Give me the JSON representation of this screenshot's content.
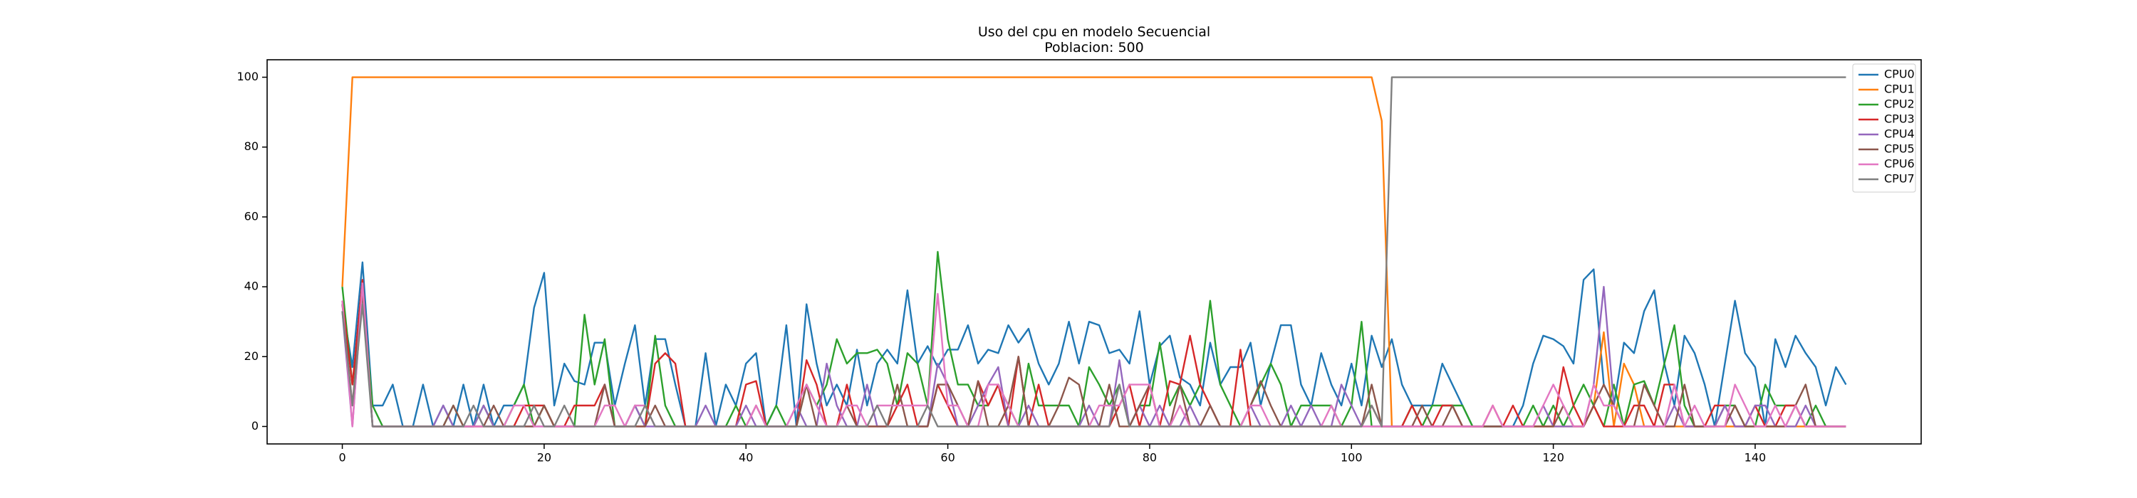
{
  "chart_data": {
    "type": "line",
    "title": "Uso del cpu en modelo Secuencial\nPoblacion: 500",
    "x": [
      0,
      1,
      2,
      3,
      4,
      5,
      6,
      7,
      8,
      9,
      10,
      11,
      12,
      13,
      14,
      15,
      16,
      17,
      18,
      19,
      20,
      21,
      22,
      23,
      24,
      25,
      26,
      27,
      28,
      29,
      30,
      31,
      32,
      33,
      34,
      35,
      36,
      37,
      38,
      39,
      40,
      41,
      42,
      43,
      44,
      45,
      46,
      47,
      48,
      49,
      50,
      51,
      52,
      53,
      54,
      55,
      56,
      57,
      58,
      59,
      60,
      61,
      62,
      63,
      64,
      65,
      66,
      67,
      68,
      69,
      70,
      71,
      72,
      73,
      74,
      75,
      76,
      77,
      78,
      79,
      80,
      81,
      82,
      83,
      84,
      85,
      86,
      87,
      88,
      89,
      90,
      91,
      92,
      93,
      94,
      95,
      96,
      97,
      98,
      99,
      100,
      101,
      102,
      103,
      104,
      105,
      106,
      107,
      108,
      109,
      110,
      111,
      112,
      113,
      114,
      115,
      116,
      117,
      118,
      119,
      120,
      121,
      122,
      123,
      124,
      125,
      126,
      127,
      128,
      129,
      130,
      131,
      132,
      133,
      134,
      135,
      136,
      137,
      138,
      139,
      140,
      141,
      142,
      143,
      144,
      145,
      146,
      147,
      148,
      149
    ],
    "series": [
      {
        "name": "CPU0",
        "color": "#1f77b4",
        "values": [
          35,
          17,
          47,
          6,
          6,
          12,
          0,
          0,
          12,
          0,
          6,
          0,
          12,
          0,
          12,
          0,
          6,
          6,
          12,
          34,
          44,
          6,
          18,
          13,
          12,
          24,
          24,
          6,
          18,
          29,
          6,
          25,
          25,
          12,
          0,
          0,
          21,
          0,
          12,
          6,
          18,
          21,
          0,
          6,
          29,
          0,
          35,
          18,
          6,
          12,
          6,
          22,
          6,
          18,
          22,
          18,
          39,
          18,
          23,
          17,
          22,
          22,
          29,
          18,
          22,
          21,
          29,
          24,
          28,
          18,
          12,
          18,
          30,
          18,
          30,
          29,
          21,
          22,
          18,
          33,
          12,
          23,
          26,
          14,
          12,
          6,
          24,
          12,
          17,
          17,
          24,
          6,
          18,
          29,
          29,
          12,
          6,
          21,
          12,
          6,
          18,
          6,
          26,
          17,
          25,
          12,
          6,
          6,
          6,
          18,
          12,
          6,
          0,
          0,
          0,
          0,
          0,
          6,
          18,
          26,
          25,
          23,
          18,
          42,
          45,
          12,
          6,
          24,
          21,
          33,
          39,
          18,
          6,
          26,
          21,
          12,
          0,
          18,
          36,
          21,
          17,
          0,
          25,
          17,
          26,
          21,
          17,
          6,
          17,
          12
        ]
      },
      {
        "name": "CPU1",
        "color": "#ff7f0e",
        "values": [
          40,
          100,
          100,
          100,
          100,
          100,
          100,
          100,
          100,
          100,
          100,
          100,
          100,
          100,
          100,
          100,
          100,
          100,
          100,
          100,
          100,
          100,
          100,
          100,
          100,
          100,
          100,
          100,
          100,
          100,
          100,
          100,
          100,
          100,
          100,
          100,
          100,
          100,
          100,
          100,
          100,
          100,
          100,
          100,
          100,
          100,
          100,
          100,
          100,
          100,
          100,
          100,
          100,
          100,
          100,
          100,
          100,
          100,
          100,
          100,
          100,
          100,
          100,
          100,
          100,
          100,
          100,
          100,
          100,
          100,
          100,
          100,
          100,
          100,
          100,
          100,
          100,
          100,
          100,
          100,
          100,
          100,
          100,
          100,
          100,
          100,
          100,
          100,
          100,
          100,
          100,
          100,
          100,
          100,
          100,
          100,
          100,
          100,
          100,
          100,
          100,
          100,
          100,
          87.5,
          0,
          0,
          0,
          0,
          0,
          0,
          0,
          0,
          0,
          0,
          0,
          0,
          0,
          0,
          0,
          0,
          0,
          0,
          0,
          0,
          6,
          27,
          0,
          18,
          12,
          0,
          0,
          0,
          0,
          0,
          0,
          0,
          0,
          0,
          0,
          0,
          0,
          0,
          0,
          0,
          0,
          0,
          0,
          0,
          0,
          0
        ]
      },
      {
        "name": "CPU2",
        "color": "#2ca02c",
        "values": [
          40,
          12,
          38,
          6,
          0,
          0,
          0,
          0,
          0,
          0,
          0,
          6,
          0,
          0,
          6,
          0,
          0,
          6,
          12,
          0,
          6,
          0,
          0,
          0,
          32,
          12,
          25,
          0,
          0,
          6,
          0,
          26,
          6,
          0,
          0,
          0,
          0,
          0,
          0,
          6,
          0,
          0,
          0,
          6,
          0,
          0,
          12,
          6,
          12,
          25,
          18,
          21,
          21,
          22,
          18,
          6,
          21,
          18,
          6,
          50,
          25,
          12,
          12,
          6,
          6,
          12,
          6,
          0,
          18,
          6,
          6,
          6,
          6,
          0,
          17,
          12,
          6,
          12,
          0,
          6,
          6,
          24,
          6,
          12,
          6,
          12,
          36,
          12,
          6,
          0,
          6,
          12,
          18,
          12,
          0,
          6,
          6,
          6,
          6,
          0,
          6,
          30,
          0,
          0,
          0,
          0,
          6,
          0,
          6,
          6,
          6,
          6,
          0,
          0,
          0,
          0,
          0,
          0,
          6,
          0,
          6,
          0,
          6,
          12,
          6,
          0,
          12,
          0,
          12,
          13,
          6,
          18,
          29,
          6,
          0,
          0,
          0,
          6,
          6,
          0,
          0,
          12,
          6,
          6,
          6,
          0,
          6,
          0,
          0,
          0
        ]
      },
      {
        "name": "CPU3",
        "color": "#d62728",
        "values": [
          36,
          12,
          42,
          0,
          0,
          0,
          0,
          0,
          0,
          0,
          0,
          0,
          0,
          0,
          0,
          0,
          0,
          0,
          6,
          6,
          6,
          0,
          0,
          6,
          6,
          6,
          12,
          0,
          0,
          0,
          0,
          18,
          21,
          18,
          0,
          0,
          0,
          0,
          0,
          0,
          12,
          13,
          0,
          0,
          0,
          0,
          19,
          12,
          0,
          0,
          12,
          0,
          0,
          0,
          0,
          6,
          12,
          0,
          0,
          12,
          6,
          0,
          0,
          13,
          6,
          12,
          0,
          20,
          0,
          12,
          0,
          0,
          0,
          0,
          0,
          0,
          0,
          6,
          12,
          0,
          12,
          0,
          13,
          12,
          26,
          12,
          6,
          0,
          0,
          22,
          0,
          0,
          0,
          0,
          0,
          0,
          0,
          0,
          0,
          0,
          0,
          0,
          6,
          0,
          0,
          0,
          6,
          0,
          0,
          6,
          6,
          0,
          0,
          0,
          6,
          0,
          6,
          0,
          0,
          0,
          0,
          17,
          6,
          0,
          6,
          0,
          0,
          0,
          6,
          6,
          0,
          12,
          12,
          0,
          0,
          0,
          6,
          6,
          0,
          0,
          6,
          0,
          0,
          6,
          6,
          0,
          0,
          0,
          0,
          0
        ]
      },
      {
        "name": "CPU4",
        "color": "#9467bd",
        "values": [
          33,
          0,
          40,
          0,
          0,
          0,
          0,
          0,
          0,
          0,
          6,
          0,
          0,
          0,
          6,
          0,
          0,
          0,
          0,
          0,
          0,
          0,
          0,
          0,
          0,
          0,
          12,
          0,
          0,
          6,
          0,
          0,
          0,
          0,
          0,
          0,
          6,
          0,
          0,
          0,
          6,
          0,
          0,
          0,
          0,
          6,
          0,
          0,
          18,
          6,
          0,
          0,
          12,
          0,
          0,
          0,
          0,
          0,
          0,
          18,
          12,
          0,
          0,
          6,
          12,
          17,
          0,
          0,
          6,
          0,
          0,
          0,
          0,
          0,
          6,
          0,
          0,
          19,
          0,
          6,
          0,
          6,
          0,
          0,
          6,
          0,
          0,
          0,
          0,
          0,
          6,
          0,
          0,
          0,
          6,
          0,
          6,
          0,
          0,
          12,
          6,
          0,
          0,
          0,
          0,
          0,
          0,
          0,
          0,
          0,
          0,
          0,
          0,
          0,
          0,
          0,
          0,
          0,
          0,
          6,
          0,
          0,
          0,
          0,
          12,
          40,
          6,
          0,
          0,
          0,
          0,
          0,
          6,
          0,
          0,
          0,
          0,
          6,
          0,
          0,
          6,
          6,
          0,
          0,
          0,
          6,
          0,
          0,
          0,
          0
        ]
      },
      {
        "name": "CPU5",
        "color": "#8c564b",
        "values": [
          35,
          6,
          39,
          0,
          0,
          0,
          0,
          0,
          0,
          0,
          0,
          6,
          0,
          0,
          0,
          6,
          0,
          0,
          0,
          0,
          6,
          0,
          0,
          0,
          0,
          0,
          12,
          0,
          0,
          0,
          0,
          6,
          0,
          0,
          0,
          0,
          0,
          0,
          0,
          0,
          0,
          6,
          0,
          0,
          0,
          0,
          12,
          0,
          0,
          0,
          6,
          0,
          0,
          0,
          0,
          12,
          0,
          0,
          0,
          12,
          12,
          6,
          0,
          13,
          0,
          0,
          6,
          20,
          0,
          0,
          0,
          6,
          14,
          12,
          0,
          0,
          12,
          0,
          0,
          6,
          12,
          0,
          0,
          12,
          0,
          0,
          6,
          0,
          0,
          0,
          6,
          13,
          6,
          0,
          0,
          0,
          0,
          0,
          0,
          0,
          0,
          0,
          12,
          0,
          0,
          0,
          0,
          6,
          0,
          0,
          6,
          0,
          0,
          0,
          0,
          0,
          0,
          0,
          0,
          0,
          0,
          6,
          0,
          0,
          6,
          12,
          6,
          0,
          0,
          12,
          6,
          0,
          0,
          12,
          0,
          0,
          0,
          0,
          6,
          0,
          0,
          0,
          0,
          0,
          6,
          12,
          0,
          0,
          0,
          0
        ]
      },
      {
        "name": "CPU6",
        "color": "#e377c2",
        "values": [
          36,
          0,
          41,
          0,
          0,
          0,
          0,
          0,
          0,
          0,
          0,
          0,
          0,
          0,
          0,
          0,
          0,
          6,
          6,
          0,
          0,
          0,
          0,
          0,
          0,
          0,
          6,
          6,
          0,
          6,
          6,
          0,
          0,
          0,
          0,
          0,
          0,
          0,
          0,
          0,
          0,
          6,
          0,
          0,
          0,
          6,
          12,
          6,
          0,
          0,
          6,
          6,
          0,
          6,
          6,
          6,
          6,
          6,
          6,
          38,
          6,
          6,
          0,
          0,
          12,
          12,
          6,
          0,
          0,
          0,
          0,
          0,
          0,
          0,
          0,
          6,
          6,
          6,
          12,
          12,
          12,
          0,
          0,
          6,
          0,
          0,
          0,
          0,
          0,
          0,
          6,
          6,
          0,
          0,
          0,
          0,
          0,
          0,
          6,
          0,
          0,
          0,
          0,
          0,
          0,
          0,
          0,
          0,
          0,
          0,
          0,
          0,
          0,
          0,
          6,
          0,
          0,
          0,
          0,
          6,
          12,
          6,
          0,
          0,
          12,
          6,
          6,
          0,
          0,
          0,
          0,
          0,
          12,
          0,
          6,
          0,
          0,
          0,
          12,
          6,
          0,
          0,
          6,
          0,
          6,
          0,
          0,
          0,
          0,
          0
        ]
      },
      {
        "name": "CPU7",
        "color": "#7f7f7f",
        "values": [
          33,
          6,
          35,
          0,
          0,
          0,
          0,
          0,
          0,
          0,
          0,
          0,
          0,
          6,
          0,
          0,
          0,
          0,
          0,
          6,
          0,
          0,
          6,
          0,
          0,
          0,
          0,
          0,
          0,
          0,
          6,
          0,
          0,
          0,
          0,
          0,
          0,
          0,
          0,
          0,
          0,
          0,
          0,
          0,
          0,
          0,
          0,
          0,
          0,
          0,
          0,
          0,
          0,
          6,
          0,
          0,
          0,
          0,
          6,
          0,
          0,
          0,
          0,
          0,
          0,
          0,
          0,
          0,
          0,
          0,
          0,
          0,
          0,
          0,
          0,
          0,
          0,
          12,
          0,
          0,
          0,
          0,
          0,
          0,
          0,
          0,
          0,
          0,
          0,
          0,
          0,
          0,
          0,
          0,
          0,
          0,
          0,
          0,
          0,
          0,
          0,
          0,
          6,
          0,
          100,
          100,
          100,
          100,
          100,
          100,
          100,
          100,
          100,
          100,
          100,
          100,
          100,
          100,
          100,
          100,
          100,
          100,
          100,
          100,
          100,
          100,
          100,
          100,
          100,
          100,
          100,
          100,
          100,
          100,
          100,
          100,
          100,
          100,
          100,
          100,
          100,
          100,
          100,
          100,
          100,
          100,
          100,
          100,
          100,
          100
        ]
      }
    ],
    "xlim": [
      -7.45,
      156.45
    ],
    "xticks": [
      0,
      20,
      40,
      60,
      80,
      100,
      120,
      140
    ],
    "ylim": [
      -5,
      105
    ],
    "yticks": [
      0,
      20,
      40,
      60,
      80,
      100
    ],
    "grid": false,
    "legend": "upper right"
  }
}
